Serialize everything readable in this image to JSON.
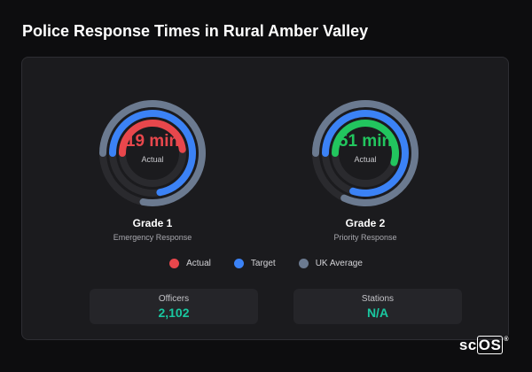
{
  "page": {
    "title": "Police Response Times in Rural Amber Valley"
  },
  "gauges": [
    {
      "value_text": "19 min",
      "sub_label": "Actual",
      "grade": "Grade 1",
      "description": "Emergency Response",
      "value_color": "#e8474c",
      "actual_fraction": 0.48,
      "target_fraction": 0.72,
      "average_fraction": 0.78
    },
    {
      "value_text": "51 min",
      "sub_label": "Actual",
      "grade": "Grade 2",
      "description": "Priority Response",
      "value_color": "#22c55e",
      "actual_fraction": 0.55,
      "target_fraction": 0.8,
      "average_fraction": 0.82
    }
  ],
  "legend": [
    {
      "label": "Actual",
      "color": "#e8474c"
    },
    {
      "label": "Target",
      "color": "#3b82f6"
    },
    {
      "label": "UK Average",
      "color": "#6b7a90"
    }
  ],
  "stats": [
    {
      "label": "Officers",
      "value": "2,102"
    },
    {
      "label": "Stations",
      "value": "N/A"
    }
  ],
  "branding": {
    "logo_prefix": "sc",
    "logo_boxed": "OS",
    "registered": "®"
  }
}
